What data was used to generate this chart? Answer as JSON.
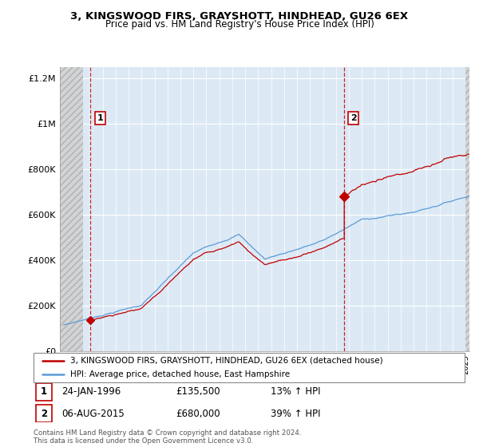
{
  "title": "3, KINGSWOOD FIRS, GRAYSHOTT, HINDHEAD, GU26 6EX",
  "subtitle": "Price paid vs. HM Land Registry's House Price Index (HPI)",
  "legend_line1": "3, KINGSWOOD FIRS, GRAYSHOTT, HINDHEAD, GU26 6EX (detached house)",
  "legend_line2": "HPI: Average price, detached house, East Hampshire",
  "annotation1_date": "24-JAN-1996",
  "annotation1_price": "£135,500",
  "annotation1_hpi": "13% ↑ HPI",
  "annotation2_date": "06-AUG-2015",
  "annotation2_price": "£680,000",
  "annotation2_hpi": "39% ↑ HPI",
  "footnote": "Contains HM Land Registry data © Crown copyright and database right 2024.\nThis data is licensed under the Open Government Licence v3.0.",
  "sale1_year": 1996.07,
  "sale1_price": 135500,
  "sale2_year": 2015.62,
  "sale2_price": 680000,
  "hpi_color": "#5b9bd5",
  "price_color": "#c00000",
  "vline_color": "#c00000",
  "plot_bg_color": "#dce9f5",
  "hatch_color": "#c8c8c8",
  "ylim_max": 1250000,
  "ylim_min": 0,
  "xmin": 1993.7,
  "xmax": 2025.3,
  "yticks": [
    0,
    200000,
    400000,
    600000,
    800000,
    1000000,
    1200000
  ],
  "ytick_labels": [
    "£0",
    "£200K",
    "£400K",
    "£600K",
    "£800K",
    "£1M",
    "£1.2M"
  ]
}
